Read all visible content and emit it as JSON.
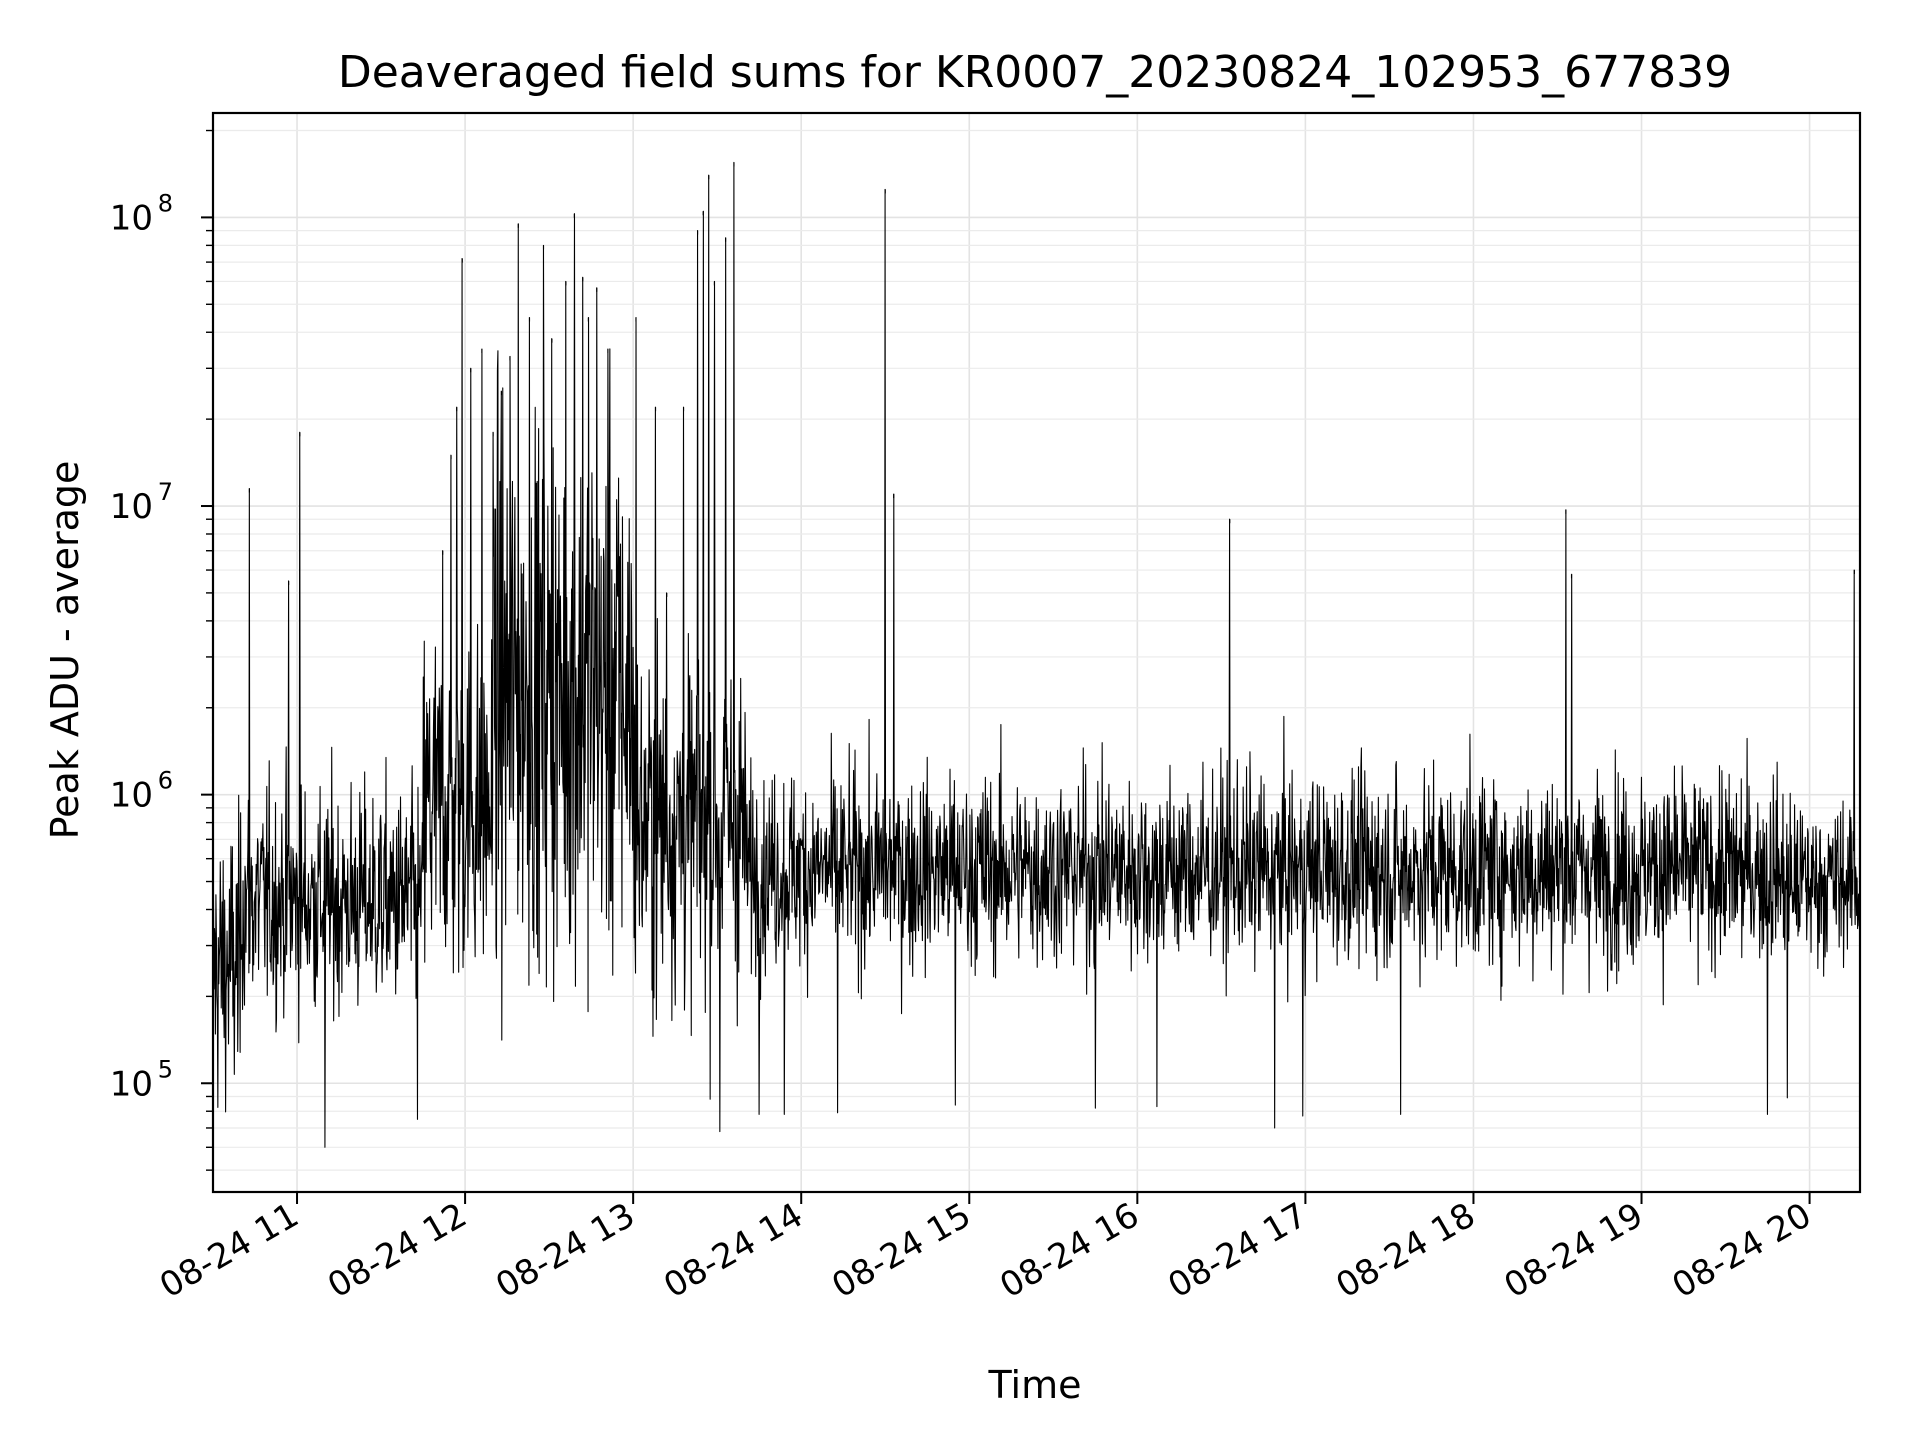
{
  "chart_data": {
    "type": "line",
    "title": "Deaveraged field sums for KR0007_20230824_102953_677839",
    "xlabel": "Time",
    "ylabel": "Peak ADU - average",
    "yscale": "log",
    "ylim": [
      42000,
      230000000
    ],
    "xlim": [
      "2023-08-24 10:30",
      "2023-08-24 20:18"
    ],
    "x_ticks": [
      "08-24 11",
      "08-24 12",
      "08-24 13",
      "08-24 14",
      "08-24 15",
      "08-24 16",
      "08-24 17",
      "08-24 18",
      "08-24 19",
      "08-24 20"
    ],
    "y_ticks": [
      {
        "base": "10",
        "exp": "5",
        "value": 100000
      },
      {
        "base": "10",
        "exp": "6",
        "value": 1000000
      },
      {
        "base": "10",
        "exp": "7",
        "value": 10000000
      },
      {
        "base": "10",
        "exp": "8",
        "value": 100000000
      }
    ],
    "grid": true,
    "line_color": "#000000",
    "baseline_segments": [
      {
        "start": "2023-08-24 10:30",
        "end": "2023-08-24 10:40",
        "center": 250000,
        "spread": 0.45
      },
      {
        "start": "2023-08-24 10:40",
        "end": "2023-08-24 11:45",
        "center": 430000,
        "spread": 0.35
      },
      {
        "start": "2023-08-24 11:45",
        "end": "2023-08-24 12:10",
        "center": 900000,
        "spread": 0.55
      },
      {
        "start": "2023-08-24 12:10",
        "end": "2023-08-24 13:00",
        "center": 2200000,
        "spread": 0.85
      },
      {
        "start": "2023-08-24 13:00",
        "end": "2023-08-24 13:40",
        "center": 800000,
        "spread": 0.55
      },
      {
        "start": "2023-08-24 13:40",
        "end": "2023-08-24 19:50",
        "center": 550000,
        "spread": 0.3
      },
      {
        "start": "2023-08-24 19:50",
        "end": "2023-08-24 20:18",
        "center": 500000,
        "spread": 0.25
      }
    ],
    "spikes": [
      {
        "x": "2023-08-24 10:43",
        "y": 11500000
      },
      {
        "x": "2023-08-24 10:57",
        "y": 5500000
      },
      {
        "x": "2023-08-24 11:01",
        "y": 18000000
      },
      {
        "x": "2023-08-24 11:52",
        "y": 7000000
      },
      {
        "x": "2023-08-24 11:55",
        "y": 15000000
      },
      {
        "x": "2023-08-24 11:57",
        "y": 22000000
      },
      {
        "x": "2023-08-24 11:59",
        "y": 72000000
      },
      {
        "x": "2023-08-24 12:02",
        "y": 30000000
      },
      {
        "x": "2023-08-24 12:06",
        "y": 35000000
      },
      {
        "x": "2023-08-24 12:10",
        "y": 18000000
      },
      {
        "x": "2023-08-24 12:13",
        "y": 25000000
      },
      {
        "x": "2023-08-24 12:16",
        "y": 33000000
      },
      {
        "x": "2023-08-24 12:19",
        "y": 95000000
      },
      {
        "x": "2023-08-24 12:23",
        "y": 45000000
      },
      {
        "x": "2023-08-24 12:28",
        "y": 80000000
      },
      {
        "x": "2023-08-24 12:31",
        "y": 38000000
      },
      {
        "x": "2023-08-24 12:36",
        "y": 60000000
      },
      {
        "x": "2023-08-24 12:39",
        "y": 103000000
      },
      {
        "x": "2023-08-24 12:42",
        "y": 62000000
      },
      {
        "x": "2023-08-24 12:44",
        "y": 45000000
      },
      {
        "x": "2023-08-24 12:47",
        "y": 57000000
      },
      {
        "x": "2023-08-24 12:51",
        "y": 35000000
      },
      {
        "x": "2023-08-24 13:01",
        "y": 45000000
      },
      {
        "x": "2023-08-24 13:08",
        "y": 22000000
      },
      {
        "x": "2023-08-24 13:12",
        "y": 5000000
      },
      {
        "x": "2023-08-24 13:18",
        "y": 22000000
      },
      {
        "x": "2023-08-24 13:23",
        "y": 90000000
      },
      {
        "x": "2023-08-24 13:25",
        "y": 105000000
      },
      {
        "x": "2023-08-24 13:27",
        "y": 140000000
      },
      {
        "x": "2023-08-24 13:29",
        "y": 60000000
      },
      {
        "x": "2023-08-24 13:33",
        "y": 85000000
      },
      {
        "x": "2023-08-24 13:36",
        "y": 155000000
      },
      {
        "x": "2023-08-24 14:30",
        "y": 125000000
      },
      {
        "x": "2023-08-24 14:33",
        "y": 11000000
      },
      {
        "x": "2023-08-24 16:33",
        "y": 9000000
      },
      {
        "x": "2023-08-24 18:33",
        "y": 9700000
      },
      {
        "x": "2023-08-24 18:35",
        "y": 5800000
      },
      {
        "x": "2023-08-24 20:16",
        "y": 6000000
      }
    ],
    "dips": [
      {
        "x": "2023-08-24 11:10",
        "y": 60000
      },
      {
        "x": "2023-08-24 11:43",
        "y": 75000
      },
      {
        "x": "2023-08-24 13:31",
        "y": 68000
      },
      {
        "x": "2023-08-24 13:45",
        "y": 78000
      },
      {
        "x": "2023-08-24 13:54",
        "y": 78000
      },
      {
        "x": "2023-08-24 14:13",
        "y": 79000
      },
      {
        "x": "2023-08-24 14:55",
        "y": 84000
      },
      {
        "x": "2023-08-24 15:45",
        "y": 82000
      },
      {
        "x": "2023-08-24 16:07",
        "y": 83000
      },
      {
        "x": "2023-08-24 16:49",
        "y": 70000
      },
      {
        "x": "2023-08-24 16:59",
        "y": 77000
      },
      {
        "x": "2023-08-24 17:34",
        "y": 78000
      },
      {
        "x": "2023-08-24 19:45",
        "y": 78000
      },
      {
        "x": "2023-08-24 19:52",
        "y": 89000
      }
    ]
  }
}
